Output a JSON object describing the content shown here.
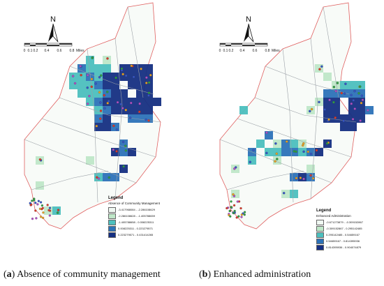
{
  "panels": [
    {
      "id": "a",
      "caption_letter": "a",
      "caption_text": " Absence of community management",
      "north_label": "N",
      "scale_labels": [
        "0",
        "0.1",
        "0.2",
        "0.4",
        "0.6",
        "0.8",
        "Miles"
      ],
      "legend": {
        "title": "Legend",
        "subtitle": "Absence of Community Management",
        "items": [
          {
            "label": "-3.417968084 - -2.286108629",
            "color": "#f0f8f2"
          },
          {
            "label": "-2.286108628 - -1.405788659",
            "color": "#bfe7c8"
          },
          {
            "label": "-1.405788658 - 0.008225311",
            "color": "#4cbfbe"
          },
          {
            "label": "0.008225311 - 0.223279571",
            "color": "#2c72b8"
          },
          {
            "label": "0.223279571 - 0.431414265",
            "color": "#152f82"
          }
        ]
      }
    },
    {
      "id": "b",
      "caption_letter": "b",
      "caption_text": " Enhanced administration",
      "north_label": "N",
      "scale_labels": [
        "0",
        "0.1",
        "0.2",
        "0.4",
        "0.6",
        "0.8",
        "Miles"
      ],
      "legend": {
        "title": "Legend",
        "subtitle": "Enhanced Administration",
        "items": [
          {
            "label": "-0.671273879 - -0.309152867",
            "color": "#f0f8f2"
          },
          {
            "label": "-0.309152867 - 0.295142485",
            "color": "#bfe7c8"
          },
          {
            "label": "0.295142485 - 0.54659167",
            "color": "#4cbfbe"
          },
          {
            "label": "0.54659167 - 0.814395936",
            "color": "#2c72b8"
          },
          {
            "label": "0.814395936 - 0.904074879",
            "color": "#152f82"
          }
        ]
      }
    }
  ]
}
